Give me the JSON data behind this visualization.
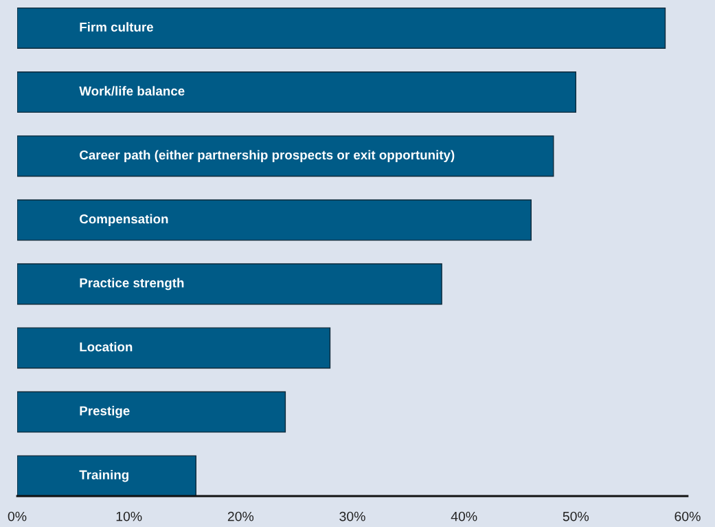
{
  "chart_data": {
    "type": "bar",
    "orientation": "horizontal",
    "categories": [
      "Firm culture",
      "Work/life balance",
      "Career path (either partnership prospects or exit opportunity)",
      "Compensation",
      "Practice strength",
      "Location",
      "Prestige",
      "Training"
    ],
    "values": [
      58,
      50,
      48,
      46,
      38,
      28,
      24,
      16
    ],
    "color": "#005b87",
    "xlim": [
      0,
      60
    ],
    "xticks": [
      {
        "value": 0,
        "label": "0%"
      },
      {
        "value": 10,
        "label": "10%"
      },
      {
        "value": 20,
        "label": "20%"
      },
      {
        "value": 30,
        "label": "30%"
      },
      {
        "value": 40,
        "label": "40%"
      },
      {
        "value": 50,
        "label": "50%"
      },
      {
        "value": 60,
        "label": "60%"
      }
    ],
    "tick_labels": "x",
    "grid": false,
    "legend": false
  }
}
